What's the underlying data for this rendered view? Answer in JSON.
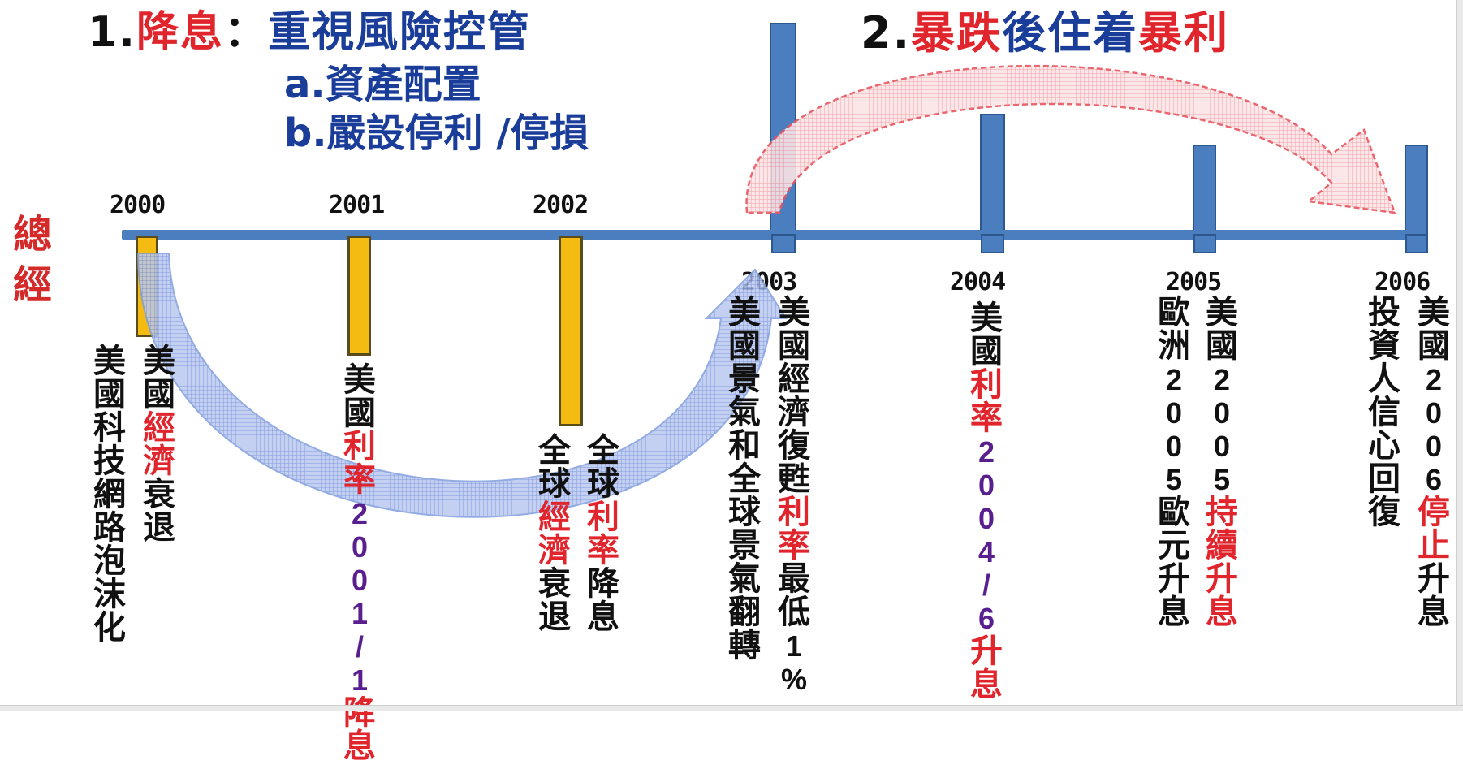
{
  "heading1": {
    "num": "1.",
    "part_red": "降息",
    "colon": "：",
    "part_blue": "重視風險控管"
  },
  "sub_a": "a.資產配置",
  "sub_b": "b.嚴設停利 /停損",
  "heading2": {
    "num": "2.",
    "w1": "暴跌",
    "w2": "後住着",
    "w3": "暴利"
  },
  "side_label": [
    "總",
    "經"
  ],
  "years": [
    "2000",
    "2001",
    "2002",
    "2003",
    "2004",
    "2005",
    "2006"
  ],
  "colors": {
    "timeline": "#4a7ebf",
    "yellow_bar": "#f4bc12",
    "red": "#e0252c",
    "blue": "#1a3d9a",
    "purple": "#5a1f8f"
  },
  "columns": {
    "y2000_a": [
      {
        "t": "美國",
        "c": "blk"
      },
      {
        "t": "經濟",
        "c": "red"
      },
      {
        "t": "衰退",
        "c": "blk"
      }
    ],
    "y2000_b": [
      {
        "t": "美國科技網路泡沫化",
        "c": "blk"
      }
    ],
    "y2001_a": [
      {
        "t": "美國",
        "c": "blk"
      },
      {
        "t": "利率",
        "c": "red"
      },
      {
        "t": "2001/1",
        "c": "purple"
      },
      {
        "t": "降息",
        "c": "red"
      }
    ],
    "y2002_a": [
      {
        "t": "全球",
        "c": "blk"
      },
      {
        "t": "利率",
        "c": "red"
      },
      {
        "t": "降息",
        "c": "blk"
      }
    ],
    "y2002_b": [
      {
        "t": "全球",
        "c": "blk"
      },
      {
        "t": "經濟",
        "c": "red"
      },
      {
        "t": "衰退",
        "c": "blk"
      }
    ],
    "y2003_a": [
      {
        "t": "美國經濟復甦",
        "c": "blk"
      },
      {
        "t": "利率",
        "c": "red"
      },
      {
        "t": "最低",
        "c": "blk"
      },
      {
        "t": "1%",
        "c": "blk"
      }
    ],
    "y2003_b": [
      {
        "t": "美國景氣和全球景氣翻轉",
        "c": "blk"
      }
    ],
    "y2004_a": [
      {
        "t": "美國",
        "c": "blk"
      },
      {
        "t": "利率",
        "c": "red"
      },
      {
        "t": "2004 /6",
        "c": "purple"
      },
      {
        "t": "升息",
        "c": "red"
      }
    ],
    "y2005_a": [
      {
        "t": "美國",
        "c": "blk"
      },
      {
        "t": "2005",
        "c": "blk"
      },
      {
        "t": "持續升息",
        "c": "red"
      }
    ],
    "y2005_b": [
      {
        "t": "歐洲",
        "c": "blk"
      },
      {
        "t": "2005",
        "c": "blk"
      },
      {
        "t": "歐元升息",
        "c": "blk"
      }
    ],
    "y2006_a": [
      {
        "t": "美國",
        "c": "blk"
      },
      {
        "t": "2006",
        "c": "blk"
      },
      {
        "t": "停止",
        "c": "red"
      },
      {
        "t": "升息",
        "c": "blk"
      }
    ],
    "y2006_b": [
      {
        "t": "投資人信心回復",
        "c": "blk"
      }
    ]
  }
}
